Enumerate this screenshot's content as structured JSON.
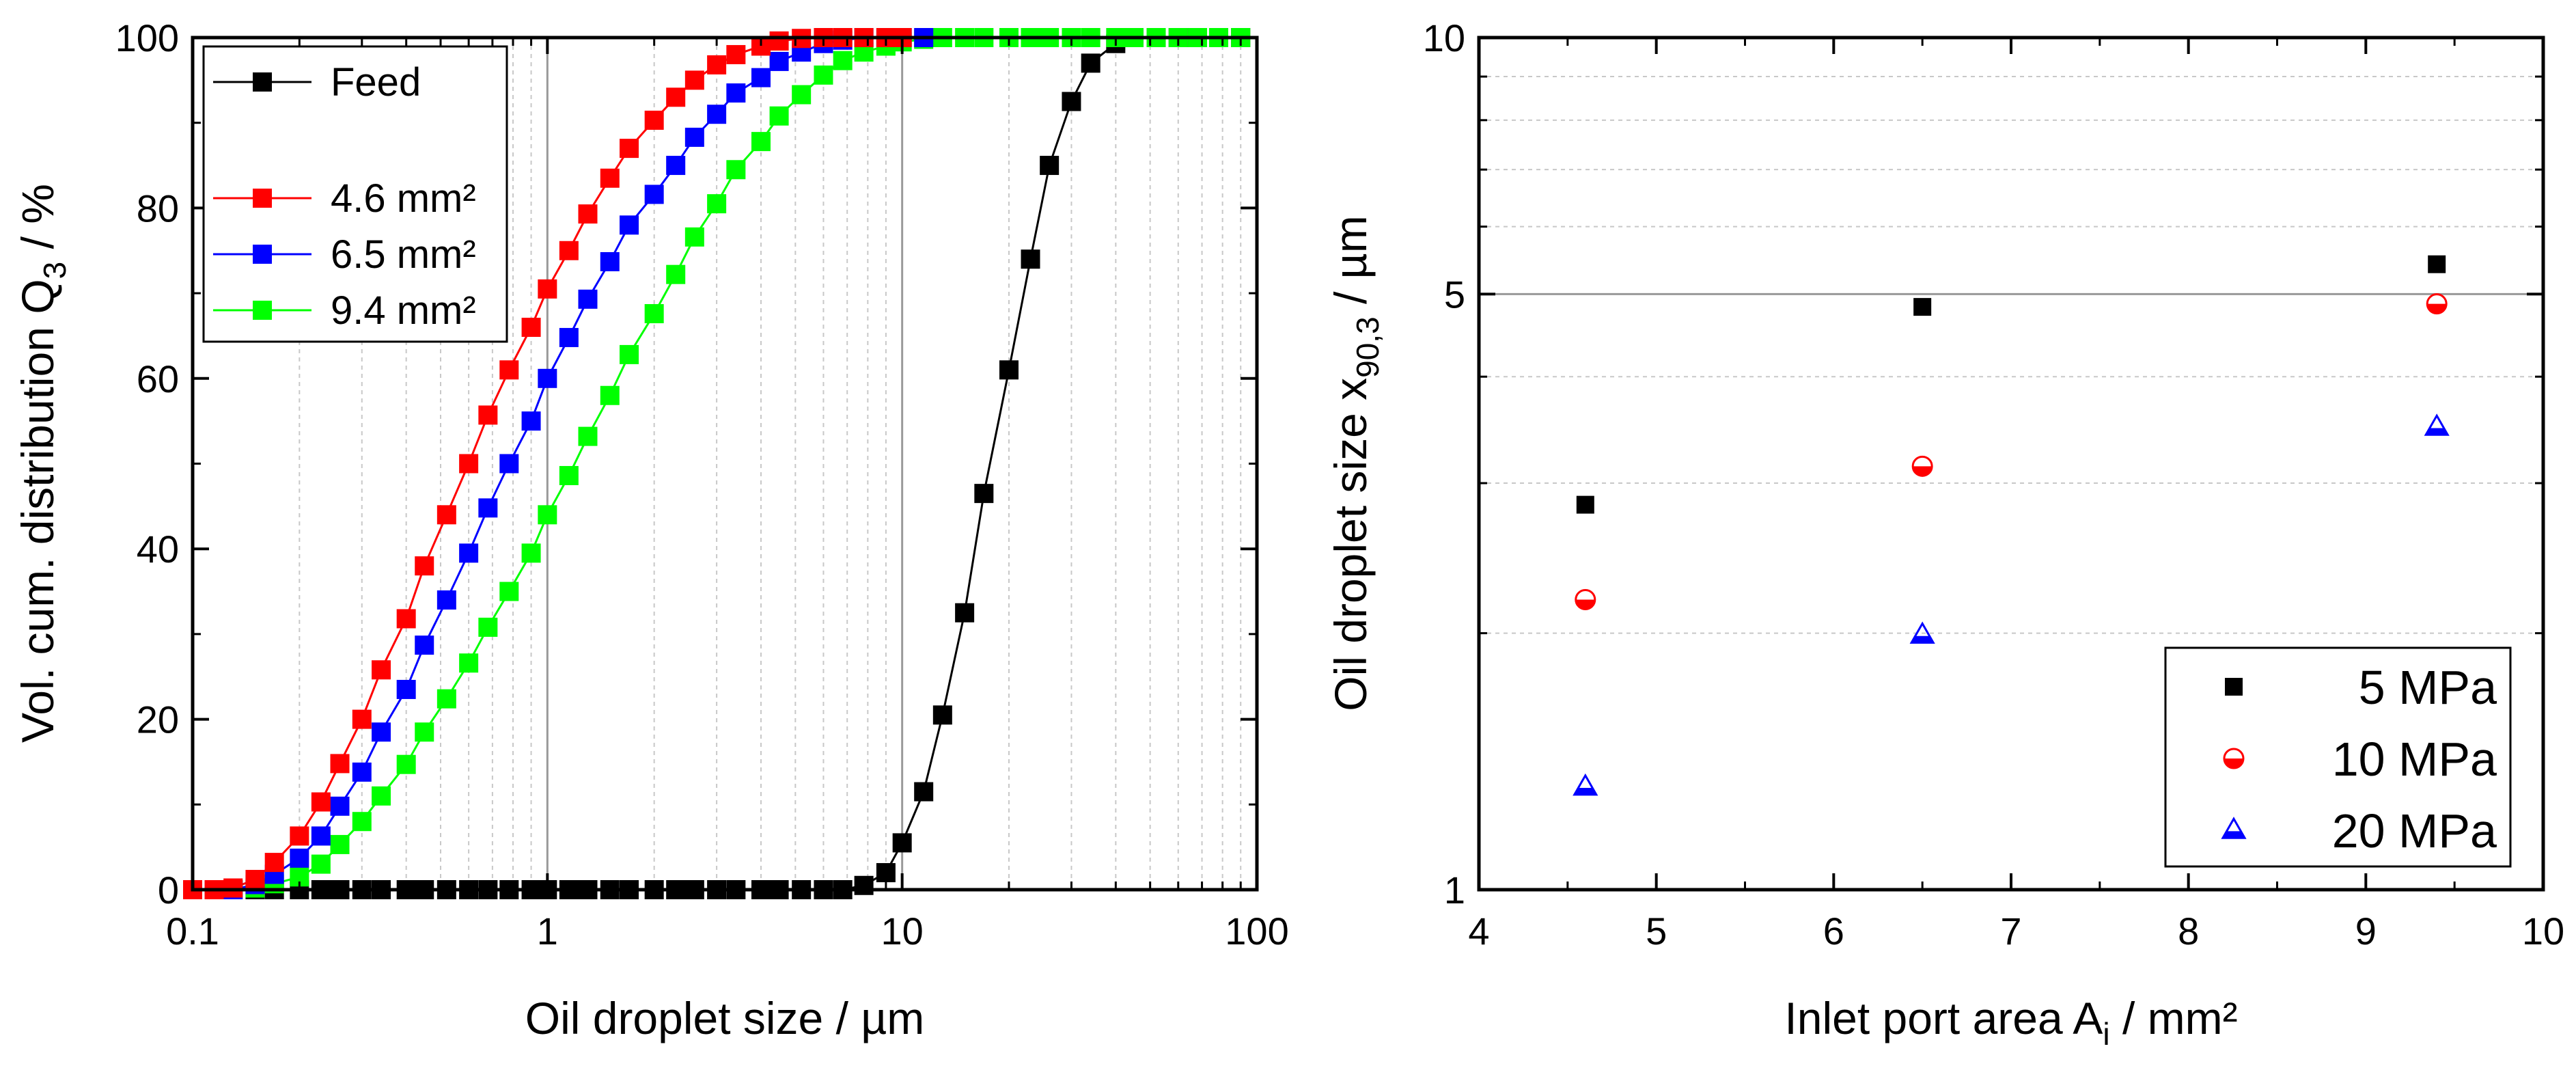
{
  "chart_data": [
    {
      "type": "line",
      "xscale": "log",
      "xlim": [
        0.1,
        100
      ],
      "ylim": [
        0,
        100
      ],
      "xlabel": "Oil droplet size / µm",
      "ylabel_main": "Vol. cum. distribution Q",
      "ylabel_sub": "3",
      "ylabel_tail": " / %",
      "xticks": [
        0.1,
        1,
        10,
        100
      ],
      "xtick_labels": [
        "0.1",
        "1",
        "10",
        "100"
      ],
      "yticks": [
        0,
        20,
        40,
        60,
        80,
        100
      ],
      "ytick_labels": [
        "0",
        "20",
        "40",
        "60",
        "80",
        "100"
      ],
      "legend_position": "top-left",
      "series": [
        {
          "name": "Feed",
          "color": "#000000",
          "x": [
            0.1,
            0.115,
            0.13,
            0.15,
            0.17,
            0.2,
            0.23,
            0.26,
            0.3,
            0.34,
            0.4,
            0.45,
            0.52,
            0.6,
            0.68,
            0.78,
            0.9,
            1.0,
            1.15,
            1.3,
            1.5,
            1.7,
            2.0,
            2.3,
            2.6,
            3.0,
            3.4,
            4.0,
            4.5,
            5.2,
            6.0,
            6.8,
            7.8,
            9.0,
            10.0,
            11.5,
            13.0,
            15.0,
            17.0,
            20.0,
            23.0,
            26.0,
            30.0,
            34.0,
            40.0,
            45.0,
            52.0,
            60.0,
            68.0,
            78.0,
            90.0
          ],
          "y": [
            0,
            0,
            0,
            0,
            0,
            0,
            0,
            0,
            0,
            0,
            0,
            0,
            0,
            0,
            0,
            0,
            0,
            0,
            0,
            0,
            0,
            0,
            0,
            0,
            0,
            0,
            0,
            0,
            0,
            0,
            0,
            0,
            0.5,
            2,
            5.5,
            11.5,
            20.5,
            32.5,
            46.5,
            61,
            74,
            85,
            92.5,
            97,
            99.3,
            100,
            100,
            100,
            100,
            100,
            100
          ]
        },
        {
          "name": "4.6 mm²",
          "color": "#ff0000",
          "x": [
            0.1,
            0.115,
            0.13,
            0.15,
            0.17,
            0.2,
            0.23,
            0.26,
            0.3,
            0.34,
            0.4,
            0.45,
            0.52,
            0.6,
            0.68,
            0.78,
            0.9,
            1.0,
            1.15,
            1.3,
            1.5,
            1.7,
            2.0,
            2.3,
            2.6,
            3.0,
            3.4,
            4.0,
            4.5,
            5.2,
            6.0,
            6.8,
            7.8,
            9.0,
            10.0
          ],
          "y": [
            0,
            0,
            0.2,
            1.2,
            3.2,
            6.3,
            10.3,
            14.8,
            20,
            25.8,
            31.8,
            38,
            44,
            50,
            55.7,
            61,
            66,
            70.5,
            75,
            79.3,
            83.5,
            87,
            90.3,
            93,
            95,
            96.8,
            98,
            99,
            99.6,
            99.9,
            100,
            100,
            100,
            100,
            100
          ]
        },
        {
          "name": "6.5 mm²",
          "color": "#0000ff",
          "x": [
            0.1,
            0.115,
            0.13,
            0.15,
            0.17,
            0.2,
            0.23,
            0.26,
            0.3,
            0.34,
            0.4,
            0.45,
            0.52,
            0.6,
            0.68,
            0.78,
            0.9,
            1.0,
            1.15,
            1.3,
            1.5,
            1.7,
            2.0,
            2.3,
            2.6,
            3.0,
            3.4,
            4.0,
            4.5,
            5.2,
            6.0,
            6.8,
            7.8,
            9.0,
            10.0,
            11.5
          ],
          "y": [
            0,
            0,
            0,
            0.6,
            1.8,
            3.7,
            6.3,
            9.8,
            13.8,
            18.5,
            23.5,
            28.7,
            34,
            39.5,
            44.8,
            50,
            55,
            60,
            64.8,
            69.3,
            73.7,
            78,
            81.6,
            85,
            88.3,
            91,
            93.5,
            95.3,
            97.2,
            98.3,
            99.3,
            99.7,
            100,
            100,
            100,
            100
          ]
        },
        {
          "name": "9.4 mm²",
          "color": "#00ff00",
          "x": [
            0.1,
            0.115,
            0.13,
            0.15,
            0.17,
            0.2,
            0.23,
            0.26,
            0.3,
            0.34,
            0.4,
            0.45,
            0.52,
            0.6,
            0.68,
            0.78,
            0.9,
            1.0,
            1.15,
            1.3,
            1.5,
            1.7,
            2.0,
            2.3,
            2.6,
            3.0,
            3.4,
            4.0,
            4.5,
            5.2,
            6.0,
            6.8,
            7.8,
            9.0,
            10.0,
            11.5,
            13.0,
            15.0,
            17.0,
            20.0,
            23.0,
            26.0,
            30.0,
            34.0,
            40.0,
            45.0,
            52.0,
            60.0,
            68.0,
            78.0,
            90.0
          ],
          "y": [
            0,
            0,
            0,
            0.2,
            0.7,
            1.5,
            3,
            5.3,
            8,
            11,
            14.7,
            18.5,
            22.4,
            26.6,
            30.8,
            35,
            39.5,
            44,
            48.6,
            53.2,
            58,
            62.8,
            67.6,
            72.2,
            76.6,
            80.5,
            84.5,
            87.8,
            90.8,
            93.3,
            95.6,
            97.3,
            98.3,
            99,
            99.5,
            99.8,
            100,
            100,
            100,
            100,
            100,
            100,
            100,
            100,
            100,
            100,
            100,
            100,
            100,
            100,
            100
          ]
        }
      ]
    },
    {
      "type": "scatter",
      "yscale": "log",
      "xlim": [
        4,
        10
      ],
      "ylim": [
        1,
        10
      ],
      "xlabel_main": "Inlet port area A",
      "xlabel_sub": "i",
      "xlabel_tail": " / mm²",
      "ylabel_main": "Oil droplet size x",
      "ylabel_sub": "90,3",
      "ylabel_tail": " / µm",
      "xticks": [
        4,
        5,
        6,
        7,
        8,
        9,
        10
      ],
      "xtick_labels": [
        "4",
        "5",
        "6",
        "7",
        "8",
        "9",
        "10"
      ],
      "yticks": [
        1,
        5,
        10
      ],
      "ytick_labels": [
        "1",
        "5",
        "10"
      ],
      "legend_position": "bottom-right",
      "series": [
        {
          "name": "5 MPa",
          "color": "#000000",
          "marker": "square",
          "x": [
            4.6,
            6.5,
            9.4
          ],
          "y": [
            2.83,
            4.83,
            5.42
          ]
        },
        {
          "name": "10 MPa",
          "color": "#ff0000",
          "marker": "half-circle",
          "x": [
            4.6,
            6.5,
            9.4
          ],
          "y": [
            2.19,
            3.14,
            4.87
          ]
        },
        {
          "name": "20 MPa",
          "color": "#0000ff",
          "marker": "half-triangle",
          "x": [
            4.6,
            6.5,
            9.4
          ],
          "y": [
            1.32,
            1.99,
            3.49
          ]
        }
      ]
    }
  ]
}
